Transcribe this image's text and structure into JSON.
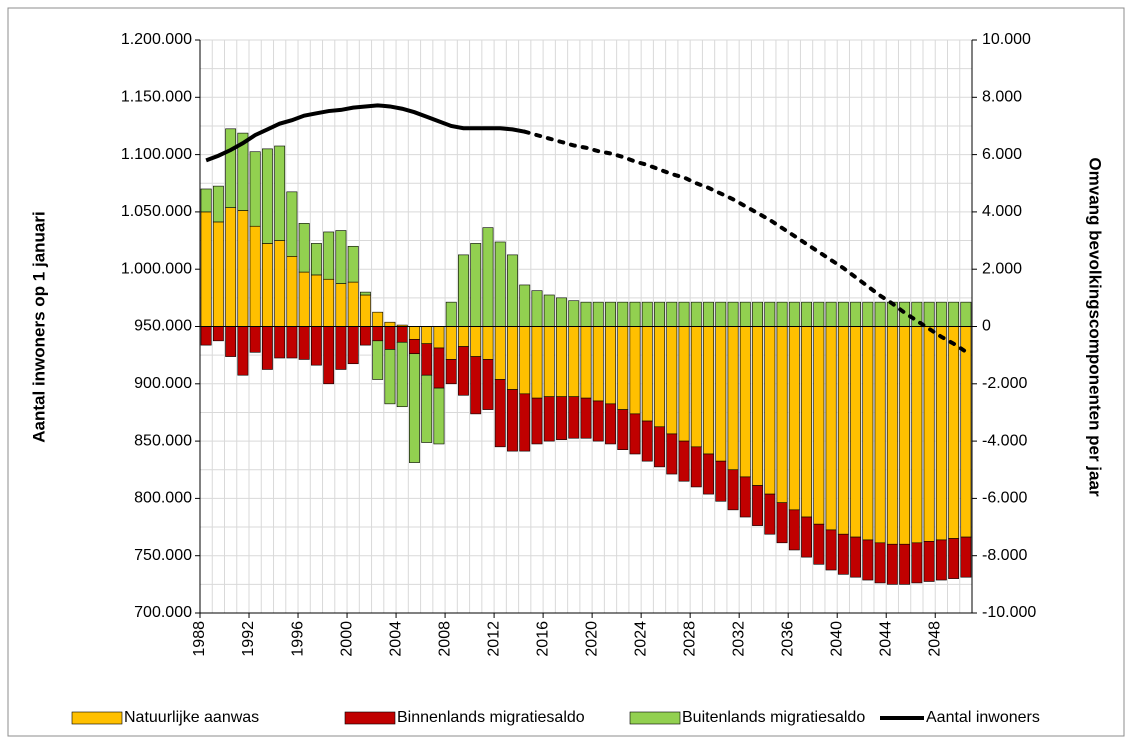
{
  "chart_data": {
    "type": "bar-line",
    "categories": [
      "1988",
      null,
      null,
      null,
      "1992",
      null,
      null,
      null,
      "1996",
      null,
      null,
      null,
      "2000",
      null,
      null,
      null,
      "2004",
      null,
      null,
      null,
      "2008",
      null,
      null,
      null,
      "2012",
      null,
      null,
      null,
      "2016",
      null,
      null,
      null,
      "2020",
      null,
      null,
      null,
      "2024",
      null,
      null,
      null,
      "2028",
      null,
      null,
      null,
      "2032",
      null,
      null,
      null,
      "2036",
      null,
      null,
      null,
      "2040",
      null,
      null,
      null,
      "2044",
      null,
      null,
      null,
      "2048",
      null,
      null
    ],
    "y_label": "Aantal inwoners op 1 januari",
    "y2_label": "Omvang bevolkingscomponenten per jaar",
    "ylim": [
      700000,
      1200000
    ],
    "yticks": [
      {
        "value": 700000,
        "label": "700.000"
      },
      {
        "value": 750000,
        "label": "750.000"
      },
      {
        "value": 800000,
        "label": "800.000"
      },
      {
        "value": 850000,
        "label": "850.000"
      },
      {
        "value": 900000,
        "label": "900.000"
      },
      {
        "value": 950000,
        "label": "950.000"
      },
      {
        "value": 1000000,
        "label": "1.000.000"
      },
      {
        "value": 1050000,
        "label": "1.050.000"
      },
      {
        "value": 1100000,
        "label": "1.100.000"
      },
      {
        "value": 1150000,
        "label": "1.150.000"
      },
      {
        "value": 1200000,
        "label": "1.200.000"
      }
    ],
    "y2lim": [
      -10000,
      10000
    ],
    "y2ticks": [
      {
        "value": -10000,
        "label": "-10.000"
      },
      {
        "value": -8000,
        "label": "-8.000"
      },
      {
        "value": -6000,
        "label": "-6.000"
      },
      {
        "value": -4000,
        "label": "-4.000"
      },
      {
        "value": -2000,
        "label": "-2.000"
      },
      0,
      {
        "value": 2000,
        "label": "2.000"
      },
      {
        "value": 4000,
        "label": "4.000"
      },
      {
        "value": 6000,
        "label": "6.000"
      },
      {
        "value": 8000,
        "label": "8.000"
      },
      {
        "value": 10000,
        "label": "10.000"
      }
    ],
    "grid": true,
    "legend": "bottom",
    "series": [
      {
        "name": "Natuurlijke aanwas",
        "type": "bar",
        "axis": "y2",
        "color": "#ffc000",
        "values": [
          4000,
          3650,
          4150,
          4050,
          3500,
          2900,
          3000,
          2450,
          1900,
          1800,
          1650,
          1500,
          1550,
          1100,
          500,
          150,
          50,
          -450,
          -600,
          -750,
          -1150,
          -700,
          -1050,
          -1150,
          -1850,
          -2200,
          -2350,
          -2500,
          -2450,
          -2450,
          -2450,
          -2500,
          -2600,
          -2700,
          -2900,
          -3050,
          -3300,
          -3500,
          -3750,
          -4000,
          -4200,
          -4450,
          -4700,
          -5000,
          -5250,
          -5550,
          -5850,
          -6150,
          -6400,
          -6650,
          -6900,
          -7100,
          -7250,
          -7350,
          -7450,
          -7550,
          -7600,
          -7600,
          -7550,
          -7500,
          -7450,
          -7400,
          -7350
        ]
      },
      {
        "name": "Binnenlands migratiesaldo",
        "type": "bar",
        "axis": "y2",
        "color": "#c00000",
        "values": [
          -650,
          -500,
          -1050,
          -1700,
          -900,
          -1500,
          -1100,
          -1100,
          -1150,
          -1350,
          -2000,
          -1500,
          -1300,
          -650,
          -500,
          -800,
          -550,
          -500,
          -1100,
          -1400,
          -850,
          -1700,
          -2000,
          -1750,
          -2350,
          -2150,
          -2000,
          -1600,
          -1550,
          -1500,
          -1450,
          -1400,
          -1400,
          -1400,
          -1400,
          -1400,
          -1400,
          -1400,
          -1400,
          -1400,
          -1400,
          -1400,
          -1400,
          -1400,
          -1400,
          -1400,
          -1400,
          -1400,
          -1400,
          -1400,
          -1400,
          -1400,
          -1400,
          -1400,
          -1400,
          -1400,
          -1400,
          -1400,
          -1400,
          -1400,
          -1400,
          -1400,
          -1400
        ]
      },
      {
        "name": "Buitenlands migratiesaldo",
        "type": "bar",
        "axis": "y2",
        "color": "#92d050",
        "values": [
          800,
          1250,
          2750,
          2700,
          2600,
          3300,
          3300,
          2250,
          1700,
          1100,
          1650,
          1850,
          1250,
          100,
          -1350,
          -1900,
          -2250,
          -3800,
          -2350,
          -1950,
          850,
          2500,
          2900,
          3450,
          2950,
          2500,
          1450,
          1250,
          1100,
          1000,
          900,
          850,
          850,
          850,
          850,
          850,
          850,
          850,
          850,
          850,
          850,
          850,
          850,
          850,
          850,
          850,
          850,
          850,
          850,
          850,
          850,
          850,
          850,
          850,
          850,
          850,
          850,
          850,
          850,
          850,
          850,
          850,
          850
        ]
      },
      {
        "name": "Aantal inwoners",
        "type": "line",
        "axis": "y",
        "color": "#000000",
        "dotted_from_index": 26,
        "values": [
          1095000,
          1099000,
          1104000,
          1110000,
          1117000,
          1122000,
          1127000,
          1130000,
          1134000,
          1136000,
          1138000,
          1139000,
          1141000,
          1142000,
          1143000,
          1142000,
          1140000,
          1137000,
          1133000,
          1129000,
          1125000,
          1123000,
          1123000,
          1123000,
          1123000,
          1122000,
          1120000,
          1117000,
          1114000,
          1111000,
          1108000,
          1106000,
          1103000,
          1101000,
          1098000,
          1094000,
          1091000,
          1087000,
          1083000,
          1080000,
          1075000,
          1071000,
          1066000,
          1061000,
          1055000,
          1049000,
          1043000,
          1036000,
          1029000,
          1022000,
          1015000,
          1008000,
          1001000,
          993000,
          985000,
          977000,
          970000,
          962000,
          955000,
          948000,
          941000,
          935000,
          928000
        ]
      }
    ]
  }
}
